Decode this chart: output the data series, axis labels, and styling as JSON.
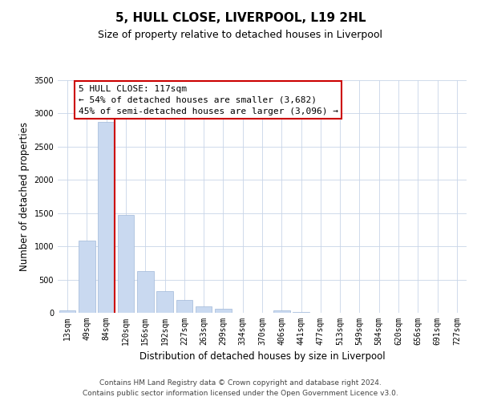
{
  "title": "5, HULL CLOSE, LIVERPOOL, L19 2HL",
  "subtitle": "Size of property relative to detached houses in Liverpool",
  "xlabel": "Distribution of detached houses by size in Liverpool",
  "ylabel": "Number of detached properties",
  "bar_labels": [
    "13sqm",
    "49sqm",
    "84sqm",
    "120sqm",
    "156sqm",
    "192sqm",
    "227sqm",
    "263sqm",
    "299sqm",
    "334sqm",
    "370sqm",
    "406sqm",
    "441sqm",
    "477sqm",
    "513sqm",
    "549sqm",
    "584sqm",
    "620sqm",
    "656sqm",
    "691sqm",
    "727sqm"
  ],
  "bar_values": [
    40,
    1090,
    2870,
    1470,
    630,
    330,
    190,
    100,
    55,
    0,
    0,
    40,
    15,
    0,
    0,
    0,
    0,
    0,
    0,
    0,
    0
  ],
  "bar_color": "#c9d9f0",
  "bar_edge_color": "#a0b8d8",
  "vline_color": "#cc0000",
  "ylim": [
    0,
    3500
  ],
  "yticks": [
    0,
    500,
    1000,
    1500,
    2000,
    2500,
    3000,
    3500
  ],
  "ann_line1": "5 HULL CLOSE: 117sqm",
  "ann_line2": "← 54% of detached houses are smaller (3,682)",
  "ann_line3": "45% of semi-detached houses are larger (3,096) →",
  "footer_line1": "Contains HM Land Registry data © Crown copyright and database right 2024.",
  "footer_line2": "Contains public sector information licensed under the Open Government Licence v3.0.",
  "bg_color": "#ffffff",
  "grid_color": "#c8d4e8",
  "title_fontsize": 11,
  "subtitle_fontsize": 9,
  "axis_label_fontsize": 8.5,
  "tick_fontsize": 7,
  "footer_fontsize": 6.5,
  "annotation_fontsize": 8
}
